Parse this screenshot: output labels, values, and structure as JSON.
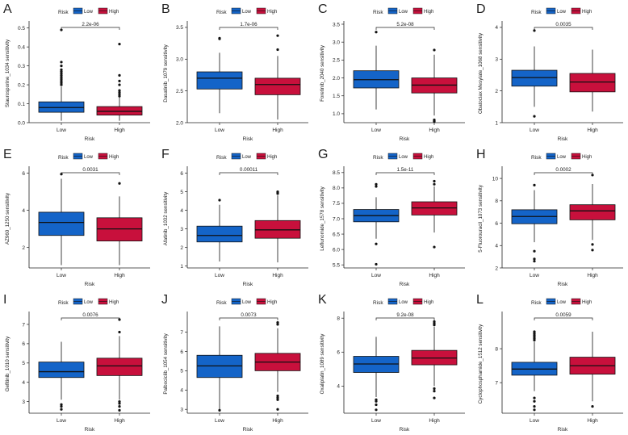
{
  "legend": {
    "title": "Risk",
    "items": [
      {
        "label": "Low",
        "color": "#1464c8"
      },
      {
        "label": "High",
        "color": "#c8103c"
      }
    ]
  },
  "xlabel": "Risk",
  "categories": [
    "Low",
    "High"
  ],
  "chart_data": [
    {
      "type": "box",
      "panel": "A",
      "ylabel": "Staurosporine_1034 sensitivity",
      "pvalue": "2.2e-06",
      "ylim": [
        0,
        0.52
      ],
      "yticks": [
        "0.0",
        "0.1",
        "0.2",
        "0.3",
        "0.4",
        "0.5"
      ],
      "series": [
        {
          "name": "Low",
          "q1": 0.055,
          "median": 0.08,
          "q3": 0.11,
          "whisker_low": 0.01,
          "whisker_high": 0.19,
          "outliers": [
            0.2,
            0.21,
            0.22,
            0.23,
            0.24,
            0.25,
            0.26,
            0.27,
            0.28,
            0.3,
            0.32,
            0.49
          ]
        },
        {
          "name": "High",
          "q1": 0.04,
          "median": 0.06,
          "q3": 0.085,
          "whisker_low": 0.01,
          "whisker_high": 0.135,
          "outliers": [
            0.14,
            0.15,
            0.16,
            0.17,
            0.2,
            0.22,
            0.25,
            0.415
          ]
        }
      ]
    },
    {
      "type": "box",
      "panel": "B",
      "ylabel": "Dasatinib_1079 sensitivity",
      "pvalue": "1.7e-06",
      "ylim": [
        2.0,
        3.55
      ],
      "yticks": [
        "2.0",
        "2.5",
        "3.0",
        "3.5"
      ],
      "series": [
        {
          "name": "Low",
          "q1": 2.53,
          "median": 2.7,
          "q3": 2.8,
          "whisker_low": 2.15,
          "whisker_high": 3.1,
          "outliers": [
            3.32,
            3.33
          ]
        },
        {
          "name": "High",
          "q1": 2.44,
          "median": 2.6,
          "q3": 2.7,
          "whisker_low": 2.05,
          "whisker_high": 3.05,
          "outliers": [
            3.15,
            3.37
          ]
        }
      ]
    },
    {
      "type": "box",
      "panel": "C",
      "ylabel": "Foretinib_2040 sensitivity",
      "pvalue": "5.2e-08",
      "ylim": [
        0.75,
        3.5
      ],
      "yticks": [
        "1.0",
        "1.5",
        "2.0",
        "2.5",
        "3.0",
        "3.5"
      ],
      "series": [
        {
          "name": "Low",
          "q1": 1.72,
          "median": 1.95,
          "q3": 2.2,
          "whisker_low": 1.12,
          "whisker_high": 2.9,
          "outliers": [
            3.28
          ]
        },
        {
          "name": "High",
          "q1": 1.58,
          "median": 1.8,
          "q3": 2.0,
          "whisker_low": 0.95,
          "whisker_high": 2.65,
          "outliers": [
            0.78,
            0.8,
            0.83,
            2.78
          ]
        }
      ]
    },
    {
      "type": "box",
      "panel": "D",
      "ylabel": "Obatoclax Mesylate_1068 sensitivity",
      "pvalue": "0.0035",
      "ylim": [
        1.0,
        4.1
      ],
      "yticks": [
        "1",
        "2",
        "3",
        "4"
      ],
      "series": [
        {
          "name": "Low",
          "q1": 2.15,
          "median": 2.42,
          "q3": 2.65,
          "whisker_low": 1.5,
          "whisker_high": 3.4,
          "outliers": [
            1.2,
            3.9
          ]
        },
        {
          "name": "High",
          "q1": 1.97,
          "median": 2.28,
          "q3": 2.55,
          "whisker_low": 1.35,
          "whisker_high": 3.3,
          "outliers": []
        }
      ]
    },
    {
      "type": "box",
      "panel": "E",
      "ylabel": "AZ960_1250 sensitivity",
      "pvalue": "0.0031",
      "ylim": [
        0.9,
        6.2
      ],
      "yticks": [
        "2",
        "4",
        "6"
      ],
      "series": [
        {
          "name": "Low",
          "q1": 2.65,
          "median": 3.35,
          "q3": 3.9,
          "whisker_low": 1.05,
          "whisker_high": 5.7,
          "outliers": [
            5.95
          ]
        },
        {
          "name": "High",
          "q1": 2.35,
          "median": 3.0,
          "q3": 3.6,
          "whisker_low": 1.05,
          "whisker_high": 4.75,
          "outliers": [
            5.45
          ]
        }
      ]
    },
    {
      "type": "box",
      "panel": "F",
      "ylabel": "Afatinib_1032 sensitivity",
      "pvalue": "0.00011",
      "ylim": [
        0.9,
        6.2
      ],
      "yticks": [
        "1",
        "2",
        "3",
        "4",
        "5",
        "6"
      ],
      "series": [
        {
          "name": "Low",
          "q1": 2.3,
          "median": 2.65,
          "q3": 3.15,
          "whisker_low": 1.25,
          "whisker_high": 4.3,
          "outliers": [
            4.55
          ]
        },
        {
          "name": "High",
          "q1": 2.5,
          "median": 2.95,
          "q3": 3.45,
          "whisker_low": 1.2,
          "whisker_high": 4.8,
          "outliers": [
            4.9,
            4.95,
            5.0
          ]
        }
      ]
    },
    {
      "type": "box",
      "panel": "G",
      "ylabel": "Leflunomide_1578 sensitivity",
      "pvalue": "1.5e-11",
      "ylim": [
        5.4,
        8.6
      ],
      "yticks": [
        "5.5",
        "6.0",
        "6.5",
        "7.0",
        "7.5",
        "8.0",
        "8.5"
      ],
      "series": [
        {
          "name": "Low",
          "q1": 6.9,
          "median": 7.1,
          "q3": 7.3,
          "whisker_low": 6.35,
          "whisker_high": 7.7,
          "outliers": [
            5.52,
            6.18,
            8.05,
            8.12
          ]
        },
        {
          "name": "High",
          "q1": 7.12,
          "median": 7.35,
          "q3": 7.55,
          "whisker_low": 6.55,
          "whisker_high": 8.05,
          "outliers": [
            6.08,
            8.12,
            8.22
          ]
        }
      ]
    },
    {
      "type": "box",
      "panel": "H",
      "ylabel": "5-Fluorouracil_1073 sensitivity",
      "pvalue": "0.0002",
      "ylim": [
        2.0,
        10.8
      ],
      "yticks": [
        "2",
        "4",
        "6",
        "8",
        "10"
      ],
      "series": [
        {
          "name": "Low",
          "q1": 5.95,
          "median": 6.6,
          "q3": 7.2,
          "whisker_low": 4.3,
          "whisker_high": 8.95,
          "outliers": [
            2.6,
            2.8,
            3.5,
            9.4
          ]
        },
        {
          "name": "High",
          "q1": 6.3,
          "median": 7.1,
          "q3": 7.65,
          "whisker_low": 4.5,
          "whisker_high": 9.5,
          "outliers": [
            3.6,
            4.1,
            10.3
          ]
        }
      ]
    },
    {
      "type": "box",
      "panel": "I",
      "ylabel": "Gefitinib_1010 sensitivity",
      "pvalue": "0.0076",
      "ylim": [
        2.4,
        7.5
      ],
      "yticks": [
        "3",
        "4",
        "5",
        "6",
        "7"
      ],
      "series": [
        {
          "name": "Low",
          "q1": 4.25,
          "median": 4.55,
          "q3": 5.05,
          "whisker_low": 3.1,
          "whisker_high": 6.1,
          "outliers": [
            2.6,
            2.75,
            2.85
          ]
        },
        {
          "name": "High",
          "q1": 4.35,
          "median": 4.85,
          "q3": 5.25,
          "whisker_low": 3.1,
          "whisker_high": 6.4,
          "outliers": [
            2.55,
            2.75,
            2.9,
            3.0,
            6.6,
            7.25
          ]
        }
      ]
    },
    {
      "type": "box",
      "panel": "J",
      "ylabel": "Palbociclib_1054 sensitivity",
      "pvalue": "0.0073",
      "ylim": [
        2.8,
        7.9
      ],
      "yticks": [
        "3",
        "4",
        "5",
        "6",
        "7"
      ],
      "series": [
        {
          "name": "Low",
          "q1": 4.65,
          "median": 5.25,
          "q3": 5.8,
          "whisker_low": 3.0,
          "whisker_high": 7.3,
          "outliers": [
            2.95
          ]
        },
        {
          "name": "High",
          "q1": 5.0,
          "median": 5.45,
          "q3": 5.9,
          "whisker_low": 3.9,
          "whisker_high": 7.2,
          "outliers": [
            3.0,
            3.5,
            3.6,
            3.7,
            7.4,
            7.5
          ]
        }
      ]
    },
    {
      "type": "box",
      "panel": "K",
      "ylabel": "Oxaliplatin_1089 sensitivity",
      "pvalue": "9.2e-08",
      "ylim": [
        2.4,
        8.2
      ],
      "yticks": [
        "4",
        "6",
        "8"
      ],
      "series": [
        {
          "name": "Low",
          "q1": 4.8,
          "median": 5.3,
          "q3": 5.75,
          "whisker_low": 3.35,
          "whisker_high": 6.9,
          "outliers": [
            2.6,
            2.9,
            3.1,
            3.2
          ]
        },
        {
          "name": "High",
          "q1": 5.25,
          "median": 5.65,
          "q3": 6.1,
          "whisker_low": 4.0,
          "whisker_high": 7.5,
          "outliers": [
            3.3,
            3.7,
            3.85,
            7.6,
            7.7,
            7.8
          ]
        }
      ]
    },
    {
      "type": "box",
      "panel": "L",
      "ylabel": "Cyclophosphamide_1512 sensitivity",
      "pvalue": "0.0059",
      "ylim": [
        6.1,
        9.0
      ],
      "yticks": [
        "7",
        "8"
      ],
      "series": [
        {
          "name": "Low",
          "q1": 7.22,
          "median": 7.4,
          "q3": 7.6,
          "whisker_low": 6.75,
          "whisker_high": 8.2,
          "outliers": [
            6.2,
            6.3,
            6.45,
            6.55,
            8.25,
            8.3,
            8.35,
            8.4,
            8.45,
            8.5
          ]
        },
        {
          "name": "High",
          "q1": 7.25,
          "median": 7.5,
          "q3": 7.75,
          "whisker_low": 6.45,
          "whisker_high": 8.5,
          "outliers": [
            6.3
          ]
        }
      ]
    }
  ]
}
